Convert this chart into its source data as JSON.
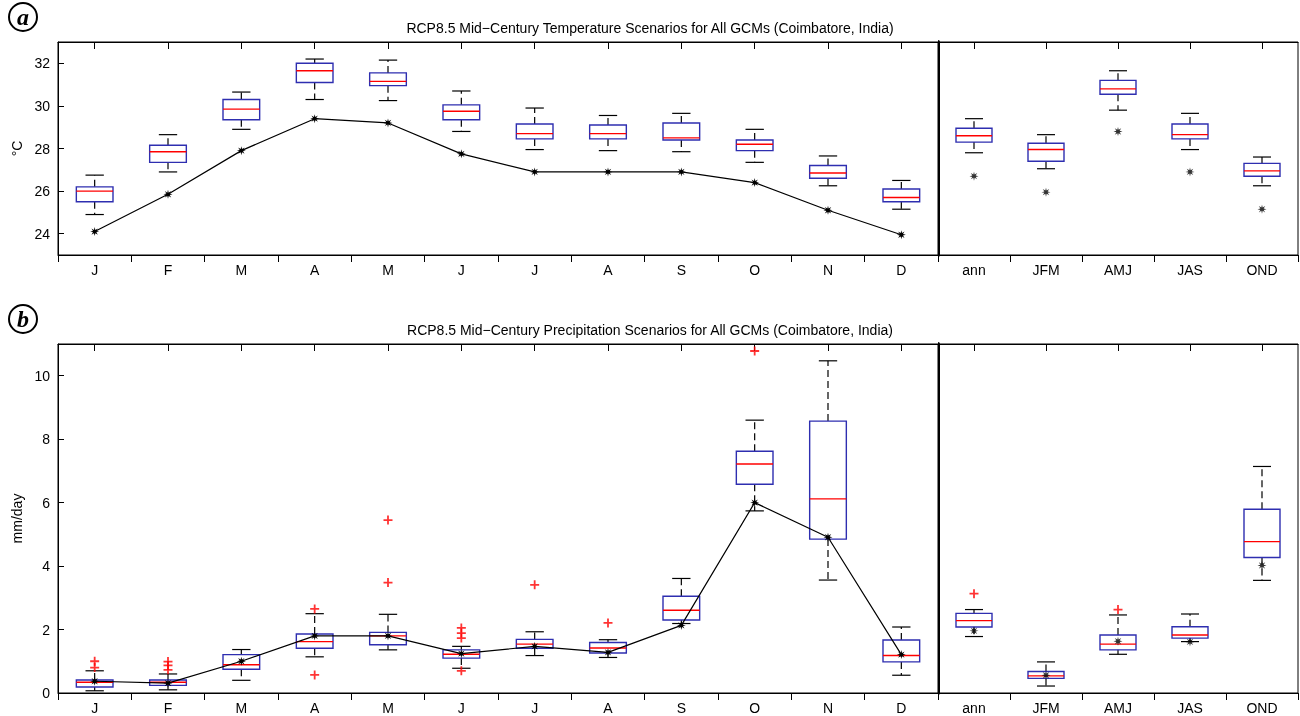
{
  "chart_data": [
    {
      "type": "box",
      "title": "RCP8.5 Mid−Century Temperature Scenarios for All GCMs (Coimbatore, India)",
      "ylabel": "°C",
      "annotations": [
        "a"
      ],
      "categories": [
        "J",
        "F",
        "M",
        "A",
        "M",
        "J",
        "J",
        "A",
        "S",
        "O",
        "N",
        "D"
      ],
      "ylim": [
        23,
        33
      ],
      "yticks": [
        24,
        26,
        28,
        30,
        32
      ],
      "series": [
        {
          "type": "box",
          "color": "#2e2eb0",
          "boxes": [
            {
              "low": 24.9,
              "q1": 25.5,
              "median": 26.0,
              "q3": 26.2,
              "high": 26.75
            },
            {
              "low": 26.9,
              "q1": 27.35,
              "median": 27.85,
              "q3": 28.15,
              "high": 28.65
            },
            {
              "low": 28.9,
              "q1": 29.35,
              "median": 29.85,
              "q3": 30.3,
              "high": 30.65
            },
            {
              "low": 30.3,
              "q1": 31.1,
              "median": 31.65,
              "q3": 32.0,
              "high": 32.2
            },
            {
              "low": 30.25,
              "q1": 30.95,
              "median": 31.15,
              "q3": 31.55,
              "high": 32.15
            },
            {
              "low": 28.8,
              "q1": 29.35,
              "median": 29.75,
              "q3": 30.05,
              "high": 30.7
            },
            {
              "low": 27.95,
              "q1": 28.45,
              "median": 28.7,
              "q3": 29.15,
              "high": 29.9
            },
            {
              "low": 27.9,
              "q1": 28.45,
              "median": 28.7,
              "q3": 29.1,
              "high": 29.55
            },
            {
              "low": 27.85,
              "q1": 28.4,
              "median": 28.5,
              "q3": 29.2,
              "high": 29.65
            },
            {
              "low": 27.35,
              "q1": 27.9,
              "median": 28.2,
              "q3": 28.4,
              "high": 28.9
            },
            {
              "low": 26.25,
              "q1": 26.6,
              "median": 26.85,
              "q3": 27.2,
              "high": 27.65
            },
            {
              "low": 25.15,
              "q1": 25.5,
              "median": 25.7,
              "q3": 26.1,
              "high": 26.5
            }
          ]
        },
        {
          "type": "line",
          "color": "#000000",
          "marker": "star",
          "values": [
            24.1,
            25.85,
            27.9,
            29.4,
            29.2,
            27.75,
            26.9,
            26.9,
            26.9,
            26.4,
            25.1,
            23.95
          ]
        }
      ]
    },
    {
      "type": "box",
      "categories": [
        "ann",
        "JFM",
        "AMJ",
        "JAS",
        "OND"
      ],
      "tick_labels": "x",
      "ylim": [
        23,
        33
      ],
      "yticks": [
        24,
        26,
        28,
        30,
        32
      ],
      "series": [
        {
          "type": "box",
          "color": "#2e2eb0",
          "boxes": [
            {
              "low": 27.8,
              "q1": 28.3,
              "median": 28.6,
              "q3": 28.95,
              "high": 29.4
            },
            {
              "low": 27.05,
              "q1": 27.4,
              "median": 27.95,
              "q3": 28.25,
              "high": 28.65
            },
            {
              "low": 29.8,
              "q1": 30.55,
              "median": 30.8,
              "q3": 31.2,
              "high": 31.65
            },
            {
              "low": 27.95,
              "q1": 28.45,
              "median": 28.65,
              "q3": 29.15,
              "high": 29.65
            },
            {
              "low": 26.25,
              "q1": 26.7,
              "median": 26.95,
              "q3": 27.3,
              "high": 27.6
            }
          ]
        },
        {
          "type": "scatter",
          "color": "#000000",
          "marker": "star",
          "values": [
            26.7,
            25.95,
            28.8,
            26.9,
            25.15
          ]
        }
      ]
    },
    {
      "type": "box",
      "title": "RCP8.5 Mid−Century Precipitation Scenarios for All GCMs (Coimbatore, India)",
      "ylabel": "mm/day",
      "annotations": [
        "b"
      ],
      "categories": [
        "J",
        "F",
        "M",
        "A",
        "M",
        "J",
        "J",
        "A",
        "S",
        "O",
        "N",
        "D"
      ],
      "ylim": [
        0,
        11
      ],
      "yticks": [
        0,
        2,
        4,
        6,
        8,
        10
      ],
      "series": [
        {
          "type": "box",
          "color": "#2e2eb0",
          "boxes": [
            {
              "low": 0.07,
              "q1": 0.19,
              "median": 0.34,
              "q3": 0.41,
              "high": 0.7,
              "outliers": [
                0.8,
                1.0
              ]
            },
            {
              "low": 0.1,
              "q1": 0.24,
              "median": 0.34,
              "q3": 0.41,
              "high": 0.6,
              "outliers": [
                0.73,
                0.87,
                0.99
              ]
            },
            {
              "low": 0.4,
              "q1": 0.75,
              "median": 0.89,
              "q3": 1.21,
              "high": 1.37
            },
            {
              "low": 1.14,
              "q1": 1.41,
              "median": 1.62,
              "q3": 1.86,
              "high": 2.5,
              "outliers": [
                0.57,
                2.65
              ]
            },
            {
              "low": 1.36,
              "q1": 1.52,
              "median": 1.8,
              "q3": 1.91,
              "high": 2.48,
              "outliers": [
                3.48,
                5.45
              ]
            },
            {
              "low": 0.78,
              "q1": 1.1,
              "median": 1.22,
              "q3": 1.36,
              "high": 1.47,
              "outliers": [
                0.7,
                1.73,
                1.89,
                2.05
              ]
            },
            {
              "low": 1.18,
              "q1": 1.41,
              "median": 1.54,
              "q3": 1.69,
              "high": 1.93,
              "outliers": [
                3.41
              ]
            },
            {
              "low": 1.12,
              "q1": 1.26,
              "median": 1.42,
              "q3": 1.59,
              "high": 1.68,
              "outliers": [
                2.21
              ]
            },
            {
              "low": 2.19,
              "q1": 2.3,
              "median": 2.61,
              "q3": 3.05,
              "high": 3.61
            },
            {
              "low": 5.74,
              "q1": 6.58,
              "median": 7.22,
              "q3": 7.62,
              "high": 8.6,
              "outliers": [
                10.78
              ]
            },
            {
              "low": 3.56,
              "q1": 4.85,
              "median": 6.12,
              "q3": 8.57,
              "high": 10.47
            },
            {
              "low": 0.56,
              "q1": 0.98,
              "median": 1.18,
              "q3": 1.67,
              "high": 2.08
            }
          ]
        },
        {
          "type": "line",
          "color": "#000000",
          "marker": "star",
          "values": [
            0.37,
            0.31,
            1.0,
            1.8,
            1.8,
            1.24,
            1.47,
            1.28,
            2.13,
            6.0,
            4.91,
            1.21
          ]
        }
      ]
    },
    {
      "type": "box",
      "categories": [
        "ann",
        "JFM",
        "AMJ",
        "JAS",
        "OND"
      ],
      "tick_labels": "x",
      "ylim": [
        0,
        11
      ],
      "yticks": [
        0,
        2,
        4,
        6,
        8,
        10
      ],
      "series": [
        {
          "type": "box",
          "color": "#2e2eb0",
          "boxes": [
            {
              "low": 1.78,
              "q1": 2.08,
              "median": 2.28,
              "q3": 2.51,
              "high": 2.63,
              "outliers": [
                3.13
              ]
            },
            {
              "low": 0.22,
              "q1": 0.46,
              "median": 0.54,
              "q3": 0.68,
              "high": 0.98
            },
            {
              "low": 1.22,
              "q1": 1.36,
              "median": 1.54,
              "q3": 1.83,
              "high": 2.46,
              "outliers": [
                2.63
              ]
            },
            {
              "low": 1.62,
              "q1": 1.73,
              "median": 1.83,
              "q3": 2.09,
              "high": 2.49
            },
            {
              "low": 3.55,
              "q1": 4.27,
              "median": 4.77,
              "q3": 5.79,
              "high": 7.14
            }
          ]
        },
        {
          "type": "scatter",
          "color": "#000000",
          "marker": "star",
          "values": [
            1.96,
            0.56,
            1.63,
            1.61,
            4.02
          ]
        }
      ]
    }
  ]
}
